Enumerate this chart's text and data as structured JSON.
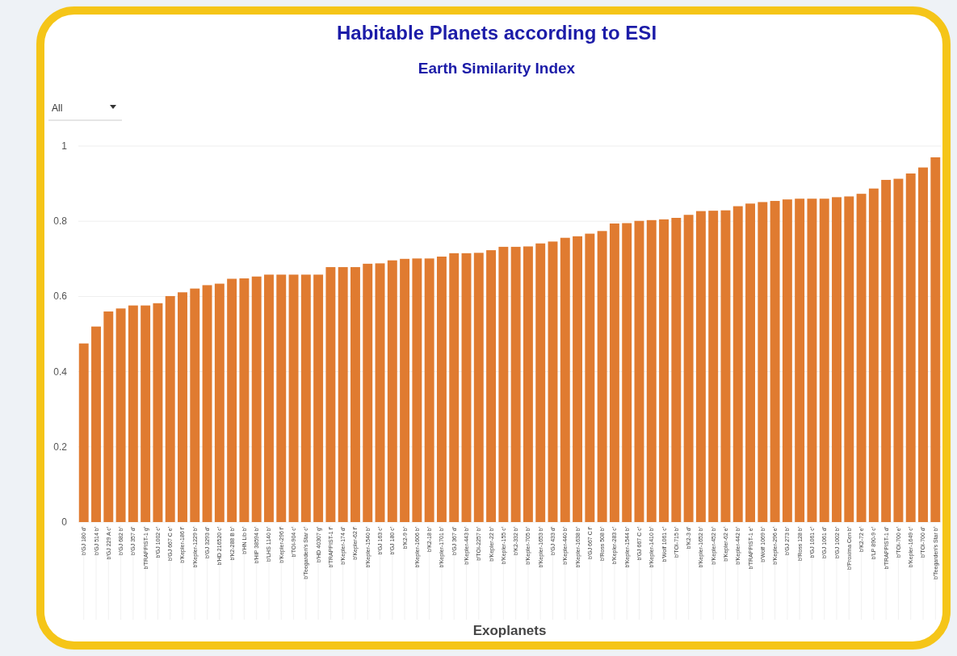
{
  "chart_data": {
    "type": "bar",
    "title": "Habitable Planets according to ESI",
    "subtitle": "Earth Similarity Index",
    "xlabel": "Exoplanets",
    "annotations": [
      "All"
    ],
    "categories": [
      "b'GJ 180 d'",
      "b'GJ 514 b'",
      "b'GJ 229 A c'",
      "b'GJ 682 b'",
      "b'GJ 357 d'",
      "b'TRAPPIST-1 g'",
      "b'GJ 1002 c'",
      "b'GJ 667 C e'",
      "b'Kepler-186 f'",
      "b'Kepler-1229 b'",
      "b'GJ 3293 d'",
      "b'HD 216520 c'",
      "b'K2-288 B b'",
      "b'HN Lib b'",
      "b'HIP 38594 b'",
      "b'LHS 1140 b'",
      "b'Kepler-296 f'",
      "b'TOI-904 c'",
      "b'Teegarden's Star c'",
      "b'HD 40307 g'",
      "b'TRAPPIST-1 f'",
      "b'Kepler-174 d'",
      "b'Kepler-62 f'",
      "b'Kepler-1540 b'",
      "b'GJ 163 c'",
      "b'GJ 180 c'",
      "b'K2-9 b'",
      "b'Kepler-1606 b'",
      "b'K2-18 b'",
      "b'Kepler-1701 b'",
      "b'GJ 367 d'",
      "b'Kepler-443 b'",
      "b'TOI-2257 b'",
      "b'Kepler-22 b'",
      "b'Kepler-155 c'",
      "b'K2-332 b'",
      "b'Kepler-705 b'",
      "b'Kepler-1653 b'",
      "b'GJ 433 d'",
      "b'Kepler-440 b'",
      "b'Kepler-1638 b'",
      "b'GJ 667 C f'",
      "b'Ross 508 b'",
      "b'Kepler-283 c'",
      "b'Kepler-1544 b'",
      "b'GJ 667 C c'",
      "b'Kepler-1410 b'",
      "b'Wolf 1061 c'",
      "b'TOI-715 b'",
      "b'K2-3 d'",
      "b'Kepler-1652 b'",
      "b'Kepler-452 b'",
      "b'Kepler-62 e'",
      "b'Kepler-442 b'",
      "b'TRAPPIST-1 e'",
      "b'Wolf 1069 b'",
      "b'Kepler-296 e'",
      "b'GJ 273 b'",
      "b'Ross 128 b'",
      "b'GJ 1061 c'",
      "b'GJ 1061 d'",
      "b'GJ 1002 b'",
      "b'Proxima Cen b'",
      "b'K2-72 e'",
      "b'LP 890-9 c'",
      "b'TRAPPIST-1 d'",
      "b'TOI-700 e'",
      "b'Kepler-1649 c'",
      "b'TOI-700 d'",
      "b'Teegarden's Star b'"
    ],
    "values": [
      0.475,
      0.52,
      0.56,
      0.568,
      0.576,
      0.576,
      0.582,
      0.601,
      0.611,
      0.621,
      0.63,
      0.634,
      0.647,
      0.648,
      0.653,
      0.658,
      0.658,
      0.658,
      0.658,
      0.658,
      0.678,
      0.678,
      0.678,
      0.687,
      0.688,
      0.696,
      0.7,
      0.701,
      0.701,
      0.706,
      0.715,
      0.715,
      0.716,
      0.723,
      0.732,
      0.732,
      0.733,
      0.741,
      0.746,
      0.756,
      0.76,
      0.767,
      0.774,
      0.794,
      0.795,
      0.801,
      0.803,
      0.805,
      0.809,
      0.817,
      0.827,
      0.828,
      0.829,
      0.84,
      0.847,
      0.851,
      0.854,
      0.858,
      0.86,
      0.86,
      0.86,
      0.864,
      0.866,
      0.873,
      0.887,
      0.91,
      0.913,
      0.927,
      0.943,
      0.97
    ],
    "color": "#e07b30",
    "ylim": [
      0,
      1
    ],
    "yticks": [
      0,
      0.2,
      0.4,
      0.6,
      0.8,
      1
    ],
    "grid": "y"
  }
}
